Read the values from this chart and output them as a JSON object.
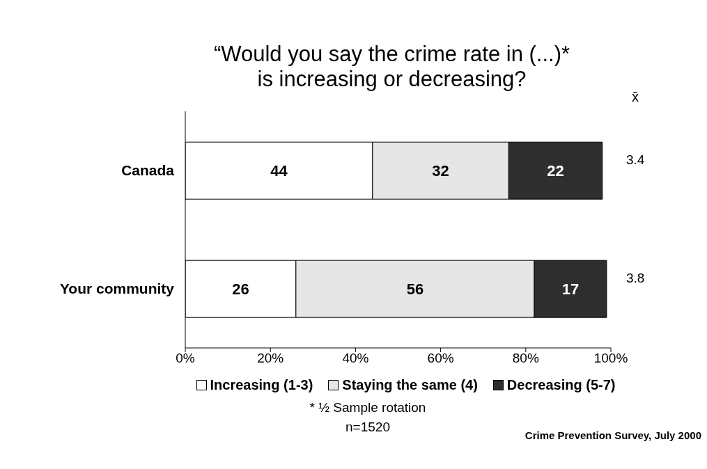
{
  "chart_data": {
    "type": "bar",
    "orientation": "horizontal",
    "stacked": true,
    "title": "“Would you say the crime rate in (...)*\nis increasing or decreasing?",
    "categories": [
      "Canada",
      "Your community"
    ],
    "series": [
      {
        "name": "Increasing (1-3)",
        "color": "#ffffff",
        "values": [
          44,
          26
        ]
      },
      {
        "name": "Staying the same (4)",
        "color": "#e6e6e6",
        "values": [
          32,
          56
        ]
      },
      {
        "name": "Decreasing (5-7)",
        "color": "#2e2e2e",
        "values": [
          22,
          17
        ]
      }
    ],
    "xlim": [
      0,
      100
    ],
    "xticks": [
      {
        "value": 0,
        "label": "0%"
      },
      {
        "value": 20,
        "label": "20%"
      },
      {
        "value": 40,
        "label": "40%"
      },
      {
        "value": 60,
        "label": "60%"
      },
      {
        "value": 80,
        "label": "80%"
      },
      {
        "value": 100,
        "label": "100%"
      }
    ],
    "data_labels": true,
    "legend": "bottom",
    "grid": false,
    "annotations": [
      "x̄",
      "3.4",
      "3.8",
      "* ½ Sample rotation",
      "n=1520",
      "Crime Prevention Survey, July 2000"
    ]
  }
}
